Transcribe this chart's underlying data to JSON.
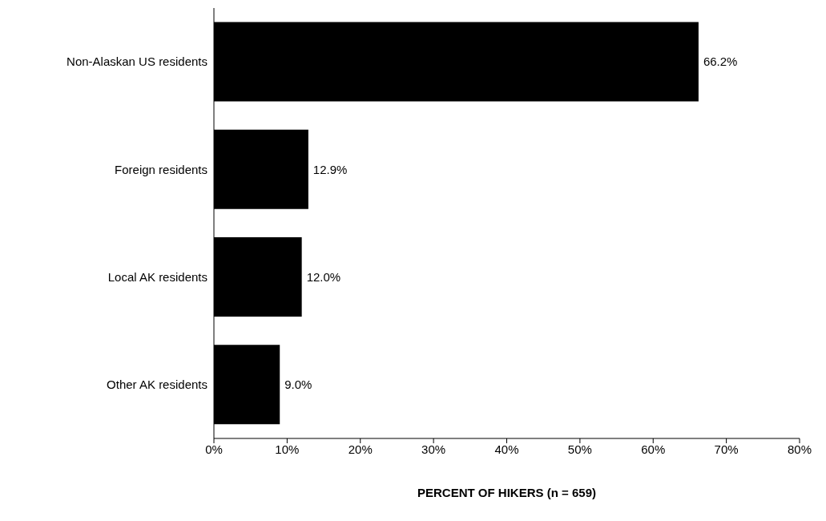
{
  "chart_data": {
    "type": "bar",
    "orientation": "horizontal",
    "xlabel": "PERCENT OF HIKERS (n = 659)",
    "categories": [
      "Non-Alaskan US residents",
      "Foreign residents",
      "Local AK residents",
      "Other AK residents"
    ],
    "values": [
      66.2,
      12.9,
      12.0,
      9.0
    ],
    "value_labels": [
      "66.2%",
      "12.9%",
      "12.0%",
      "9.0%"
    ],
    "color": "#000000",
    "xlim": [
      0,
      80
    ],
    "xticks": [
      {
        "value": 0,
        "label": "0%"
      },
      {
        "value": 10,
        "label": "10%"
      },
      {
        "value": 20,
        "label": "20%"
      },
      {
        "value": 30,
        "label": "30%"
      },
      {
        "value": 40,
        "label": "40%"
      },
      {
        "value": 50,
        "label": "50%"
      },
      {
        "value": 60,
        "label": "60%"
      },
      {
        "value": 70,
        "label": "70%"
      },
      {
        "value": 80,
        "label": "80%"
      }
    ],
    "grid": false,
    "legend": false
  }
}
